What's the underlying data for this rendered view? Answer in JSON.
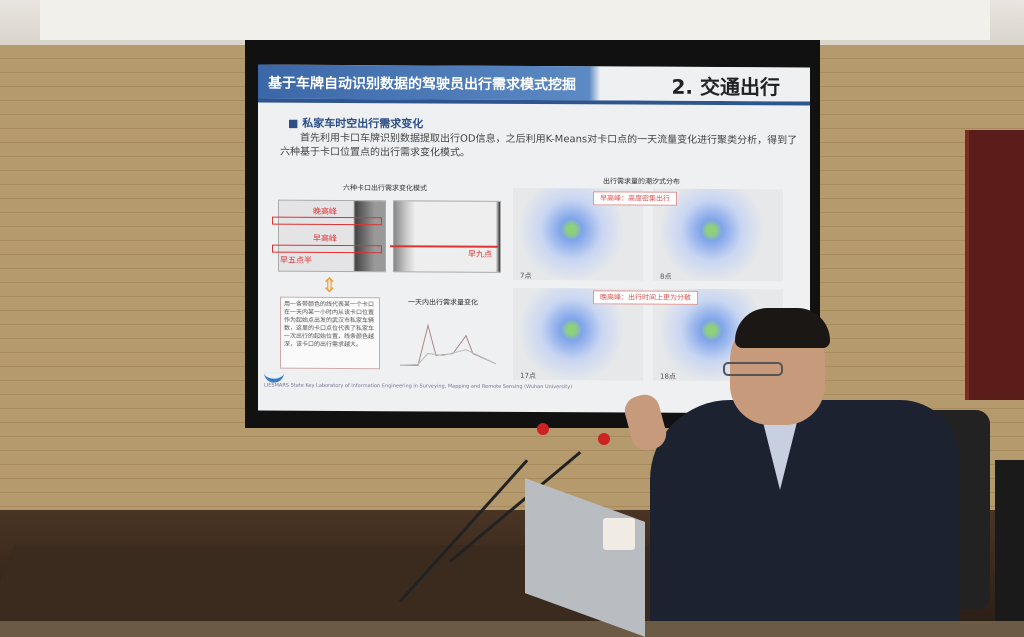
{
  "slide": {
    "title": "基于车牌自动识别数据的驾驶员出行需求模式挖掘",
    "section": "2. 交通出行",
    "bullet": "私家车时空出行需求变化",
    "body": "首先利用卡口车牌识别数据提取出行OD信息，之后利用K-Means对卡口点的一天流量变化进行聚类分析，得到了六种基于卡口位置点的出行需求变化模式。",
    "left_figure": {
      "title": "六种卡口出行需求变化模式",
      "labels": [
        "晚高峰",
        "早高峰",
        "早五点半",
        "早九点"
      ],
      "description": "用一条带颜色的线代表某一个卡口在一天内某一小时内从该卡口位置作为起始点出发的武汉市私家车辆数，这里的卡口点位代表了私家车一次出行的起始位置，线条颜色越深，该卡口的出行需求越大。",
      "line_title": "一天内出行需求量变化"
    },
    "right_figure": {
      "title": "出行需求量的潮汐式分布",
      "morning_tag": "早高峰：高度密集出行",
      "evening_tag": "晚高峰：出行时间上更为分散",
      "maps": [
        "7点",
        "8点",
        "17点",
        "18点"
      ]
    },
    "footer": "LIESMARS State Key Laboratory of Information Engineering in Surveying, Mapping and Remote Sensing (Wuhan University)",
    "accent": "#3b67a8",
    "highlight": "#dd3333"
  }
}
